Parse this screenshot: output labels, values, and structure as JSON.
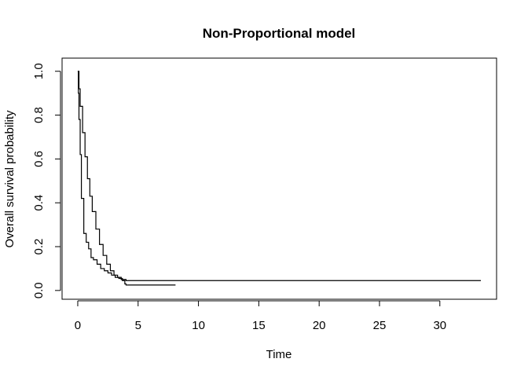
{
  "chart_data": {
    "type": "line",
    "title": "Non-Proportional model",
    "xlabel": "Time",
    "ylabel": "Overall survival probability",
    "xlim": [
      -1.3,
      34.7
    ],
    "ylim": [
      -0.04,
      1.06
    ],
    "xticks": [
      0,
      5,
      10,
      15,
      20,
      25,
      30
    ],
    "yticks": [
      0.0,
      0.2,
      0.4,
      0.6,
      0.8,
      1.0
    ],
    "xtick_labels": [
      "0",
      "5",
      "10",
      "15",
      "20",
      "25",
      "30"
    ],
    "ytick_labels": [
      "0.0",
      "0.2",
      "0.4",
      "0.6",
      "0.8",
      "1.0"
    ],
    "grid": false,
    "legend": null,
    "line_color": "#000000",
    "series": [
      {
        "x": [
          0,
          0.05,
          0.1,
          0.2,
          0.3,
          0.5,
          0.7,
          0.9,
          1.1,
          1.3,
          1.6,
          1.9,
          2.2,
          2.5,
          2.8,
          3.1,
          3.4,
          3.7,
          3.9,
          4.0,
          8.1
        ],
        "y": [
          1.0,
          0.9,
          0.78,
          0.62,
          0.42,
          0.26,
          0.22,
          0.19,
          0.15,
          0.14,
          0.12,
          0.1,
          0.09,
          0.08,
          0.07,
          0.06,
          0.055,
          0.045,
          0.03,
          0.025,
          0.025
        ]
      },
      {
        "x": [
          0,
          0.1,
          0.2,
          0.4,
          0.6,
          0.8,
          1.0,
          1.2,
          1.5,
          1.8,
          2.1,
          2.4,
          2.7,
          3.0,
          3.3,
          3.6,
          4.0,
          33.4
        ],
        "y": [
          1.0,
          0.92,
          0.84,
          0.72,
          0.61,
          0.51,
          0.43,
          0.36,
          0.28,
          0.21,
          0.16,
          0.12,
          0.09,
          0.07,
          0.06,
          0.05,
          0.045,
          0.045
        ]
      }
    ]
  }
}
